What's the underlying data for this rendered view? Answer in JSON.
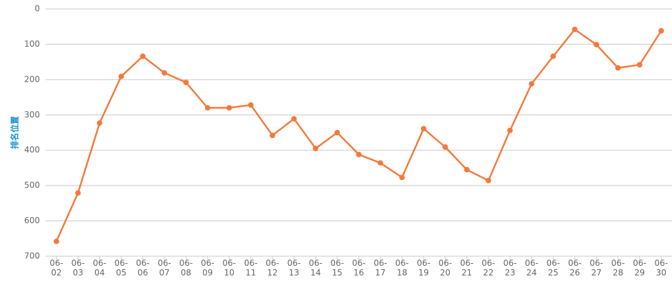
{
  "chart_data": {
    "type": "line",
    "y_label": "排名位置",
    "categories": [
      "06-02",
      "06-03",
      "06-04",
      "06-05",
      "06-06",
      "06-07",
      "06-08",
      "06-09",
      "06-10",
      "06-11",
      "06-12",
      "06-13",
      "06-14",
      "06-15",
      "06-16",
      "06-17",
      "06-18",
      "06-19",
      "06-20",
      "06-21",
      "06-22",
      "06-23",
      "06-24",
      "06-25",
      "06-26",
      "06-27",
      "06-28",
      "06-29",
      "06-30"
    ],
    "values": [
      658,
      521,
      323,
      191,
      134,
      181,
      208,
      280,
      280,
      272,
      358,
      311,
      395,
      350,
      412,
      436,
      477,
      339,
      391,
      455,
      486,
      344,
      212,
      134,
      58,
      101,
      167,
      158,
      62
    ],
    "color": "#f47a3c",
    "ylim": [
      0,
      700
    ],
    "y_inverted": true,
    "yticks": [
      0,
      100,
      200,
      300,
      400,
      500,
      600,
      700
    ],
    "grid": true
  }
}
